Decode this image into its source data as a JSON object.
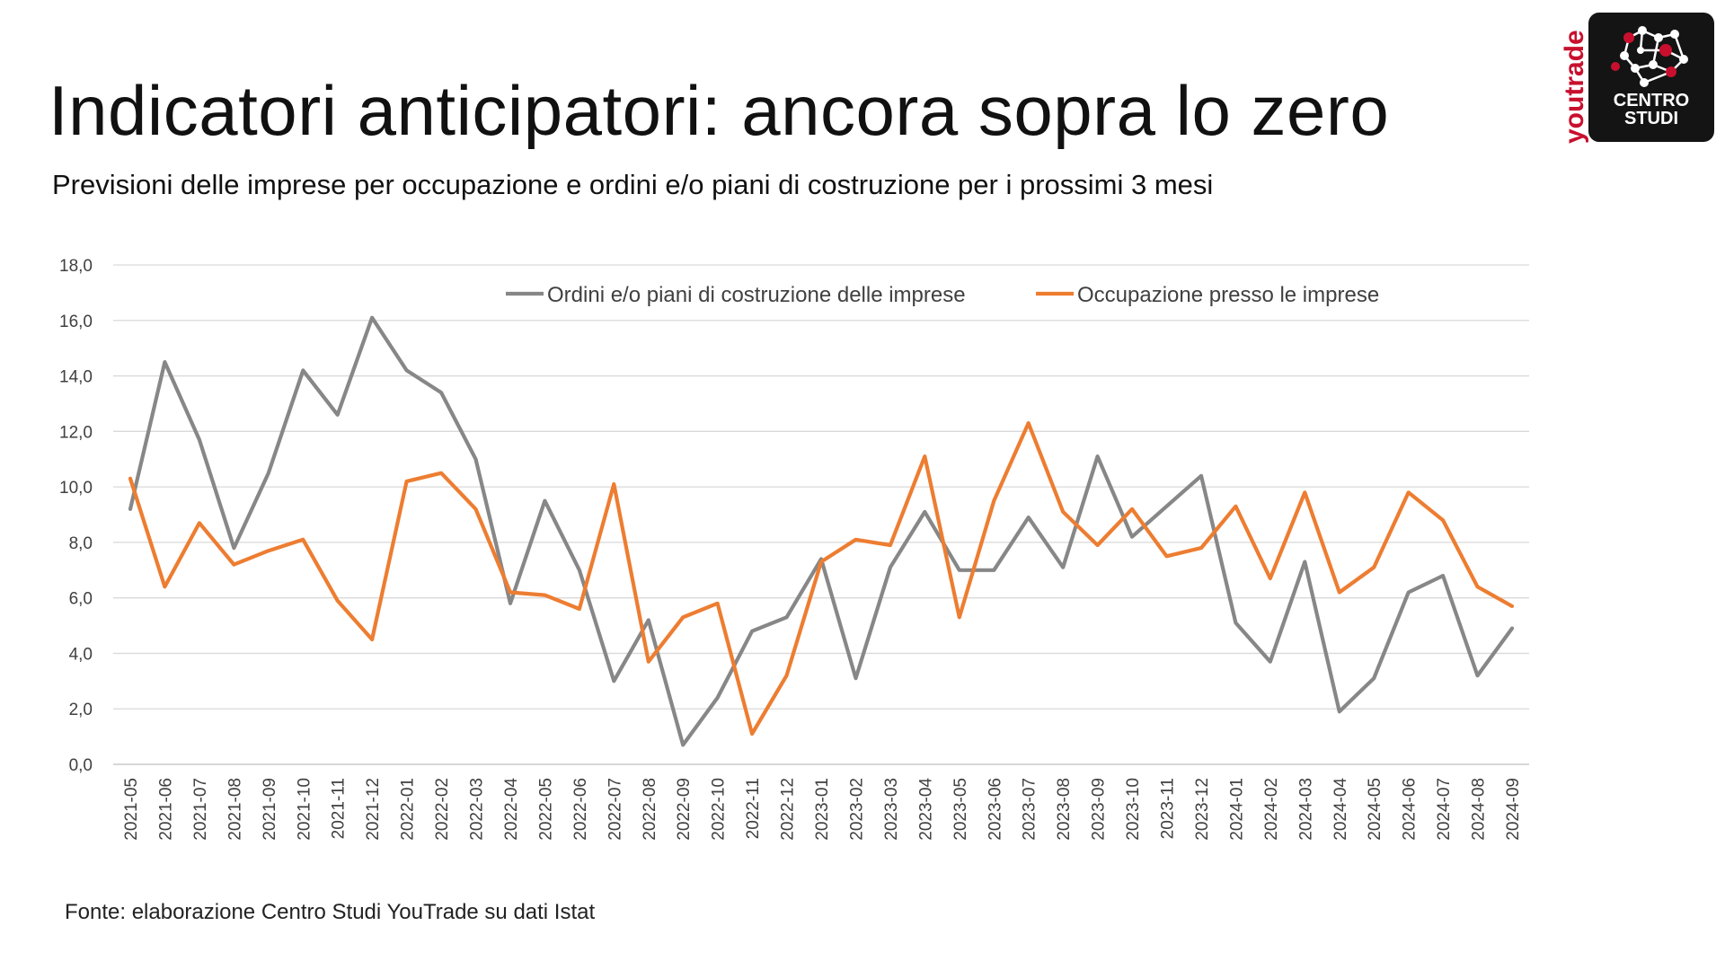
{
  "header": {
    "title": "Indicatori anticipatori: ancora sopra lo zero",
    "subtitle": "Previsioni delle imprese per occupazione e ordini e/o piani di costruzione per i prossimi 3 mesi"
  },
  "logo": {
    "brand": "youtrade",
    "line1": "CENTRO",
    "line2": "STUDI",
    "brand_color": "#c8102e"
  },
  "footer": {
    "source": "Fonte: elaborazione Centro Studi YouTrade su dati Istat"
  },
  "chart_data": {
    "type": "line",
    "title": "",
    "xlabel": "",
    "ylabel": "",
    "ylim": [
      0,
      18
    ],
    "ytick_step": 2,
    "grid": true,
    "legend_position": "top",
    "categories": [
      "2021-05",
      "2021-06",
      "2021-07",
      "2021-08",
      "2021-09",
      "2021-10",
      "2021-11",
      "2021-12",
      "2022-01",
      "2022-02",
      "2022-03",
      "2022-04",
      "2022-05",
      "2022-06",
      "2022-07",
      "2022-08",
      "2022-09",
      "2022-10",
      "2022-11",
      "2022-12",
      "2023-01",
      "2023-02",
      "2023-03",
      "2023-04",
      "2023-05",
      "2023-06",
      "2023-07",
      "2023-08",
      "2023-09",
      "2023-10",
      "2023-11",
      "2023-12",
      "2024-01",
      "2024-02",
      "2024-03",
      "2024-04",
      "2024-05",
      "2024-06",
      "2024-07",
      "2024-08",
      "2024-09"
    ],
    "yticks": [
      "0,0",
      "2,0",
      "4,0",
      "6,0",
      "8,0",
      "10,0",
      "12,0",
      "14,0",
      "16,0",
      "18,0"
    ],
    "series": [
      {
        "name": "Ordini e/o piani di costruzione delle imprese",
        "color": "#878787",
        "values": [
          9.2,
          14.5,
          11.7,
          7.8,
          10.5,
          14.2,
          12.6,
          16.1,
          14.2,
          13.4,
          11.0,
          5.8,
          9.5,
          7.0,
          3.0,
          5.2,
          0.7,
          2.4,
          4.8,
          5.3,
          7.4,
          3.1,
          7.1,
          9.1,
          7.0,
          7.0,
          8.9,
          7.1,
          11.1,
          8.2,
          9.3,
          10.4,
          5.1,
          3.7,
          7.3,
          1.9,
          3.1,
          6.2,
          6.8,
          3.2,
          4.9
        ]
      },
      {
        "name": "Occupazione presso le imprese",
        "color": "#ed7d31",
        "values": [
          10.3,
          6.4,
          8.7,
          7.2,
          7.7,
          8.1,
          5.9,
          4.5,
          10.2,
          10.5,
          9.2,
          6.2,
          6.1,
          5.6,
          10.1,
          3.7,
          5.3,
          5.8,
          1.1,
          3.2,
          7.3,
          8.1,
          7.9,
          11.1,
          5.3,
          9.5,
          12.3,
          9.1,
          7.9,
          9.2,
          7.5,
          7.8,
          9.3,
          6.7,
          9.8,
          6.2,
          7.1,
          9.8,
          8.8,
          6.4,
          5.7
        ]
      }
    ]
  }
}
